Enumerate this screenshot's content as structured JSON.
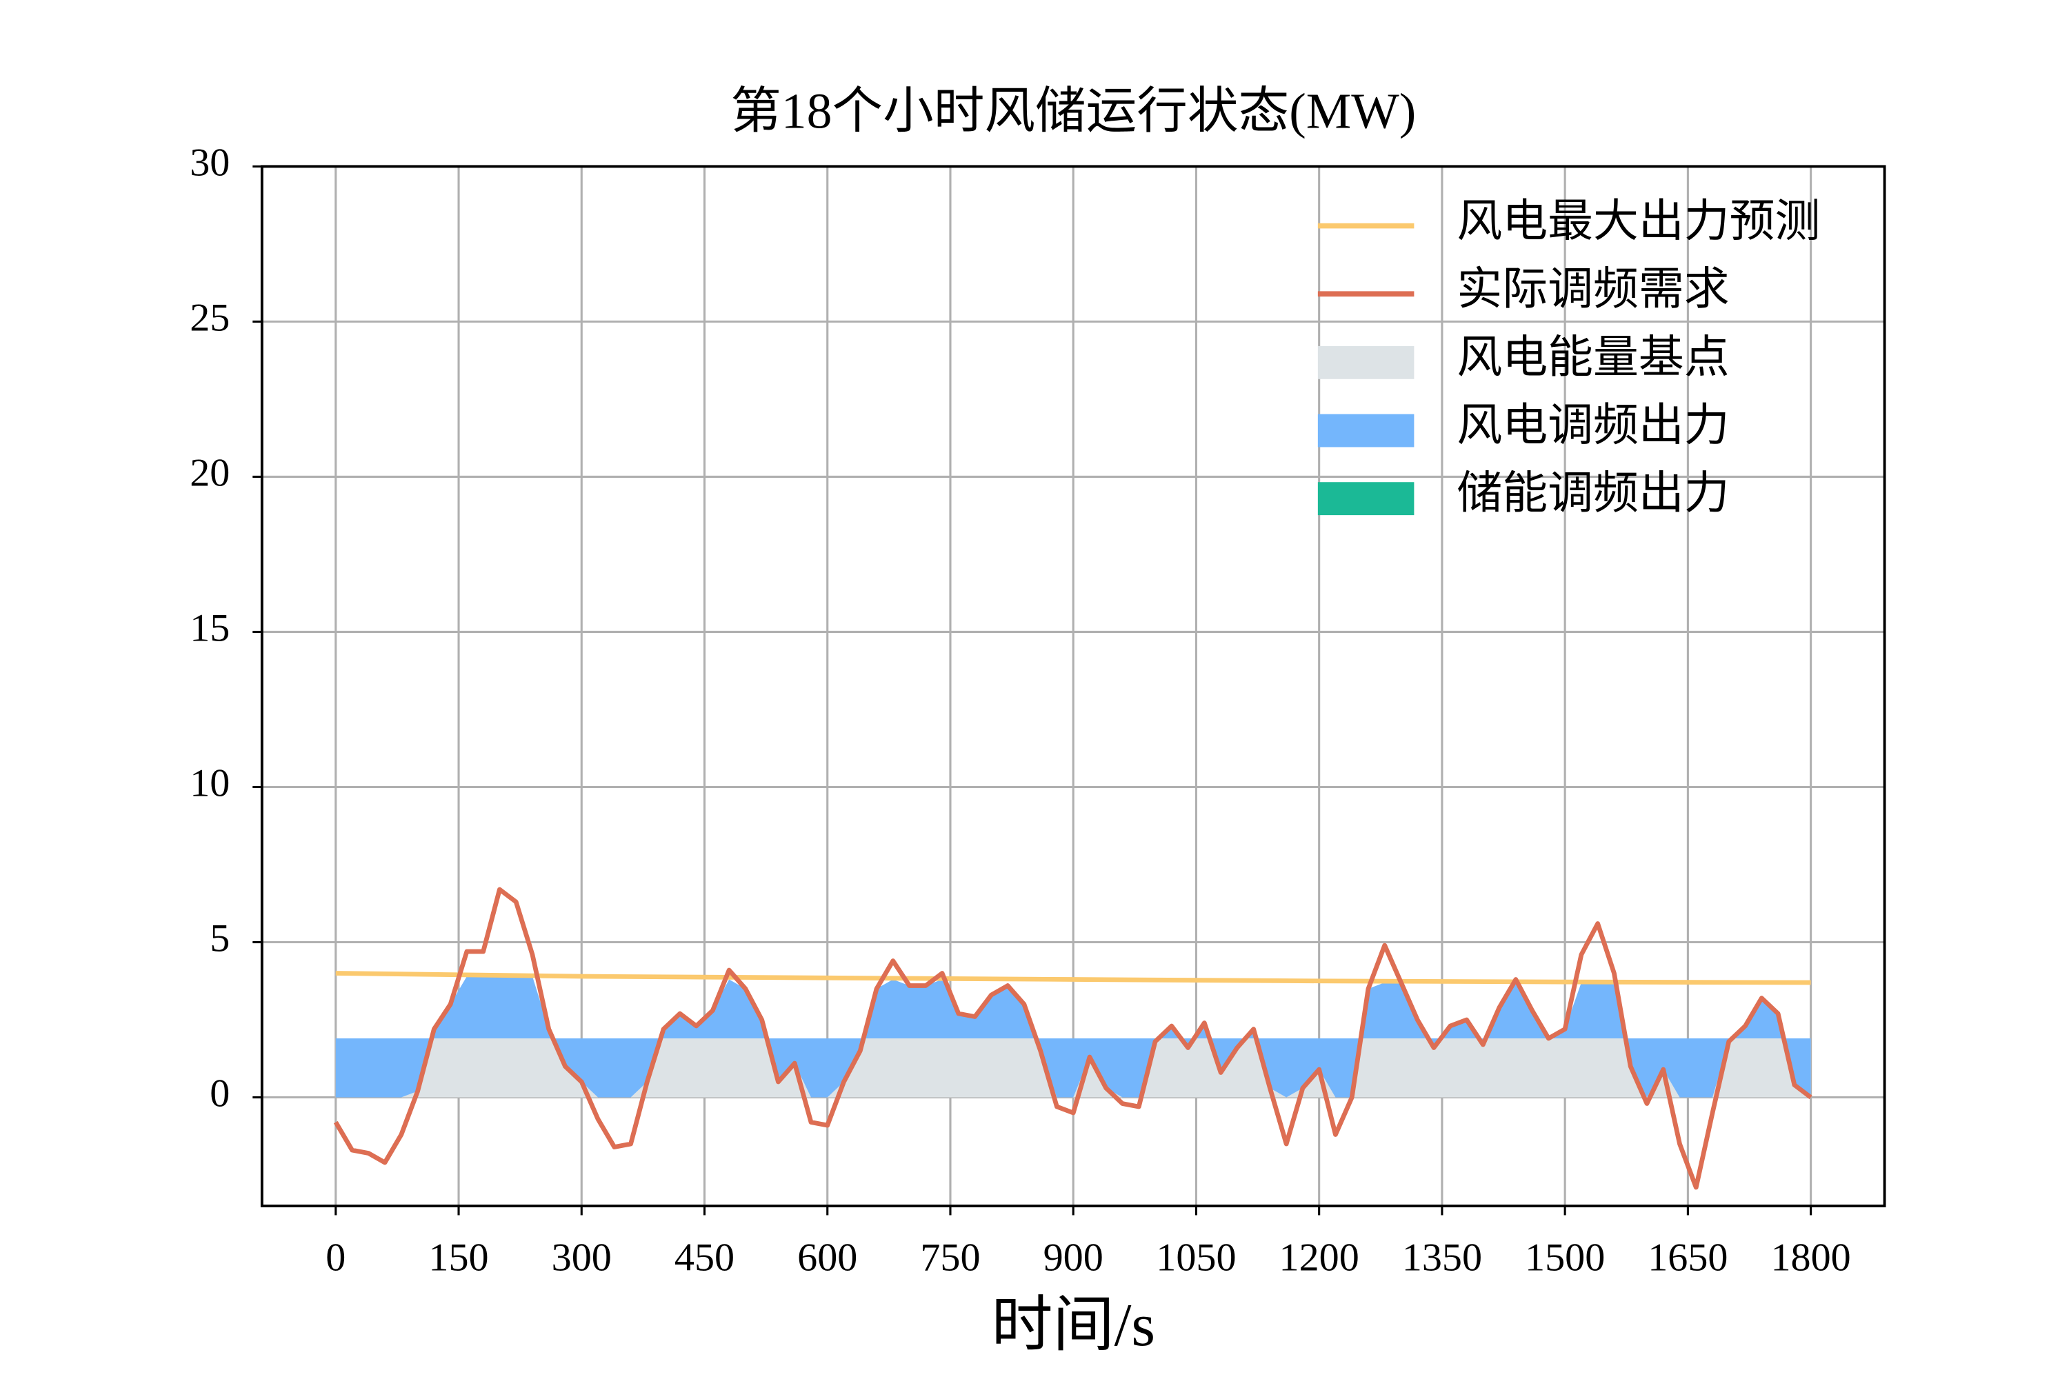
{
  "chart_data": {
    "type": "line",
    "title": "第18个小时风储运行状态(MW)",
    "x_label": "时间/s",
    "x": [
      0,
      20,
      40,
      60,
      80,
      100,
      120,
      140,
      160,
      180,
      200,
      220,
      240,
      260,
      280,
      300,
      320,
      340,
      360,
      380,
      400,
      420,
      440,
      460,
      480,
      500,
      520,
      540,
      560,
      580,
      600,
      620,
      640,
      660,
      680,
      700,
      720,
      740,
      760,
      780,
      800,
      820,
      840,
      860,
      880,
      900,
      920,
      940,
      960,
      980,
      1000,
      1020,
      1040,
      1060,
      1080,
      1100,
      1120,
      1140,
      1160,
      1180,
      1200,
      1220,
      1240,
      1260,
      1280,
      1300,
      1320,
      1340,
      1360,
      1380,
      1400,
      1420,
      1440,
      1460,
      1480,
      1500,
      1520,
      1540,
      1560,
      1580,
      1600,
      1620,
      1640,
      1660,
      1680,
      1700,
      1720,
      1740,
      1760,
      1780,
      1800
    ],
    "series": [
      {
        "name": "风电最大出力预测",
        "mark": "line",
        "color": "#fbc96e",
        "x": [
          0,
          300,
          600,
          900,
          1200,
          1500,
          1800
        ],
        "values": [
          4.0,
          3.9,
          3.85,
          3.8,
          3.75,
          3.72,
          3.7
        ]
      },
      {
        "name": "实际调频需求",
        "mark": "line",
        "color": "#dd6e53",
        "values": [
          -0.8,
          -1.7,
          -1.8,
          -2.1,
          -1.2,
          0.2,
          2.2,
          3.0,
          4.7,
          4.7,
          6.7,
          6.3,
          4.6,
          2.2,
          1.0,
          0.5,
          -0.7,
          -1.6,
          -1.5,
          0.5,
          2.2,
          2.7,
          2.3,
          2.8,
          4.1,
          3.5,
          2.5,
          0.5,
          1.1,
          -0.8,
          -0.9,
          0.5,
          1.5,
          3.5,
          4.4,
          3.6,
          3.6,
          4.0,
          2.7,
          2.6,
          3.3,
          3.6,
          3.0,
          1.5,
          -0.3,
          -0.5,
          1.3,
          0.3,
          -0.2,
          -0.3,
          1.8,
          2.3,
          1.6,
          2.4,
          0.8,
          1.6,
          2.2,
          0.3,
          -1.5,
          0.3,
          0.9,
          -1.2,
          0.0,
          3.5,
          4.9,
          3.7,
          2.5,
          1.6,
          2.3,
          2.5,
          1.7,
          2.9,
          3.8,
          2.8,
          1.9,
          2.2,
          4.6,
          5.6,
          4.0,
          1.0,
          -0.2,
          0.9,
          -1.5,
          -2.9,
          -0.5,
          1.8,
          2.3,
          3.2,
          2.7,
          0.4,
          0.0
        ]
      },
      {
        "name": "风电能量基点",
        "mark": "area",
        "color": "#dde3e6",
        "x": [
          0,
          1800
        ],
        "values": [
          1.9,
          1.9
        ]
      },
      {
        "name": "风电调频出力",
        "mark": "area",
        "color": "#74b6fc",
        "values": [
          -1.9,
          -1.9,
          -1.9,
          -1.9,
          -1.9,
          -1.7,
          0.3,
          1.1,
          2.0,
          2.0,
          2.0,
          2.0,
          2.0,
          0.3,
          -0.9,
          -1.4,
          -1.9,
          -1.9,
          -1.9,
          -1.4,
          0.3,
          0.8,
          0.4,
          0.9,
          1.9,
          1.6,
          0.6,
          -1.4,
          -0.8,
          -1.9,
          -1.9,
          -1.4,
          -0.4,
          1.6,
          1.9,
          1.7,
          1.7,
          1.9,
          0.8,
          0.7,
          1.4,
          1.7,
          1.1,
          -0.4,
          -1.9,
          -1.9,
          -0.6,
          -1.6,
          -1.9,
          -1.9,
          -0.1,
          0.4,
          -0.3,
          0.5,
          -1.1,
          -0.3,
          0.3,
          -1.6,
          -1.9,
          -1.6,
          -1.0,
          -1.9,
          -1.9,
          1.6,
          1.8,
          1.8,
          0.6,
          -0.3,
          0.4,
          0.6,
          -0.2,
          1.0,
          1.8,
          0.9,
          0.0,
          0.3,
          1.8,
          1.8,
          1.8,
          -0.9,
          -1.9,
          -1.0,
          -1.9,
          -1.9,
          -1.9,
          -0.1,
          0.4,
          1.3,
          0.8,
          -1.5,
          -1.9
        ]
      },
      {
        "name": "储能调频出力",
        "mark": "area",
        "color": "#1bb996",
        "x": [
          0,
          1800
        ],
        "values": [
          0,
          0
        ]
      }
    ],
    "xlim": [
      -90,
      1890
    ],
    "ylim": [
      -3.5,
      30
    ],
    "xticks": [
      0,
      150,
      300,
      450,
      600,
      750,
      900,
      1050,
      1200,
      1350,
      1500,
      1650,
      1800
    ],
    "yticks": [
      0,
      5,
      10,
      15,
      20,
      25,
      30
    ],
    "grid": true,
    "legend": "upper right"
  }
}
